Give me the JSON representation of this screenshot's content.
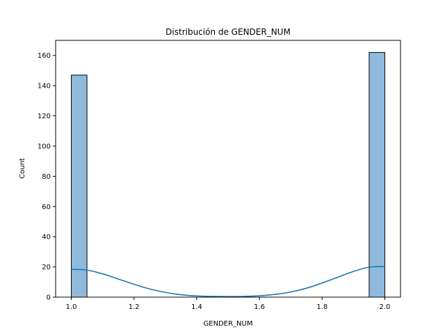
{
  "chart_data": {
    "type": "bar",
    "title": "Distribución de GENDER_NUM",
    "xlabel": "GENDER_NUM",
    "ylabel": "Count",
    "xlim": [
      0.95,
      2.05
    ],
    "ylim": [
      0,
      170
    ],
    "xticks": [
      1.0,
      1.2,
      1.4,
      1.6,
      1.8,
      2.0
    ],
    "xtick_labels": [
      "1.0",
      "1.2",
      "1.4",
      "1.6",
      "1.8",
      "2.0"
    ],
    "yticks": [
      0,
      20,
      40,
      60,
      80,
      100,
      120,
      140,
      160
    ],
    "ytick_labels": [
      "0",
      "20",
      "40",
      "60",
      "80",
      "100",
      "120",
      "140",
      "160"
    ],
    "bins": {
      "start": 1.0,
      "width": 0.05,
      "counts": [
        147,
        0,
        0,
        0,
        0,
        0,
        0,
        0,
        0,
        0,
        0,
        0,
        0,
        0,
        0,
        0,
        0,
        0,
        0,
        162
      ]
    },
    "kde": {
      "x": [
        1.0,
        1.05,
        1.1,
        1.15,
        1.2,
        1.25,
        1.3,
        1.35,
        1.4,
        1.45,
        1.5,
        1.55,
        1.6,
        1.65,
        1.7,
        1.75,
        1.8,
        1.85,
        1.9,
        1.95,
        2.0
      ],
      "y": [
        18.4,
        17.9,
        15.4,
        12.0,
        8.5,
        5.4,
        3.1,
        1.6,
        0.8,
        0.5,
        0.4,
        0.5,
        0.9,
        1.8,
        3.4,
        5.9,
        9.3,
        13.2,
        17.0,
        19.8,
        20.3
      ]
    },
    "grid": false,
    "colors": {
      "bar_fill": "#8fbadb",
      "bar_edge": "#000000",
      "kde_line": "#1f77b4",
      "axes": "#000000",
      "background": "#ffffff"
    }
  }
}
